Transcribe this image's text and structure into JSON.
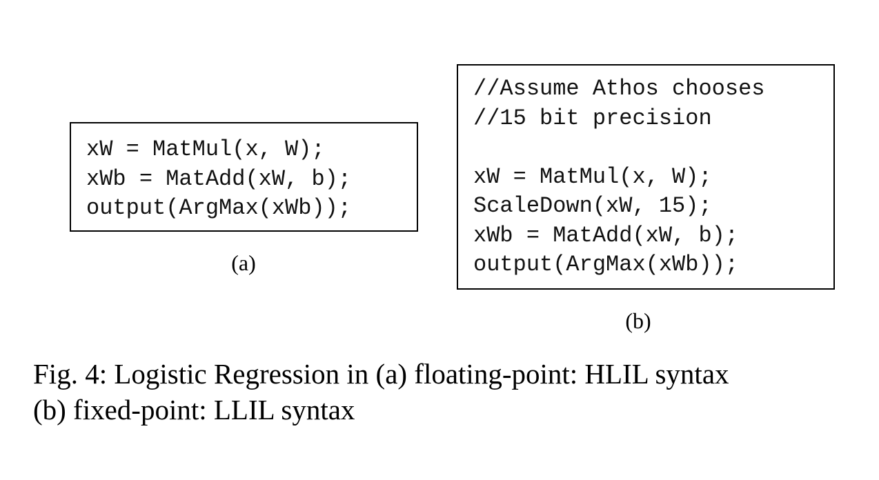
{
  "figure": {
    "panel_a": {
      "code_lines": [
        "xW = MatMul(x, W);",
        "xWb = MatAdd(xW, b);",
        "output(ArgMax(xWb));"
      ],
      "label": "(a)"
    },
    "panel_b": {
      "code_lines": [
        "//Assume Athos chooses",
        "//15 bit precision",
        "",
        "xW = MatMul(x, W);",
        "ScaleDown(xW, 15);",
        "xWb = MatAdd(xW, b);",
        "output(ArgMax(xWb));"
      ],
      "label": "(b)"
    },
    "caption_lines": [
      "Fig. 4: Logistic Regression in (a) floating-point: HLIL syntax",
      "(b) fixed-point: LLIL syntax"
    ]
  }
}
